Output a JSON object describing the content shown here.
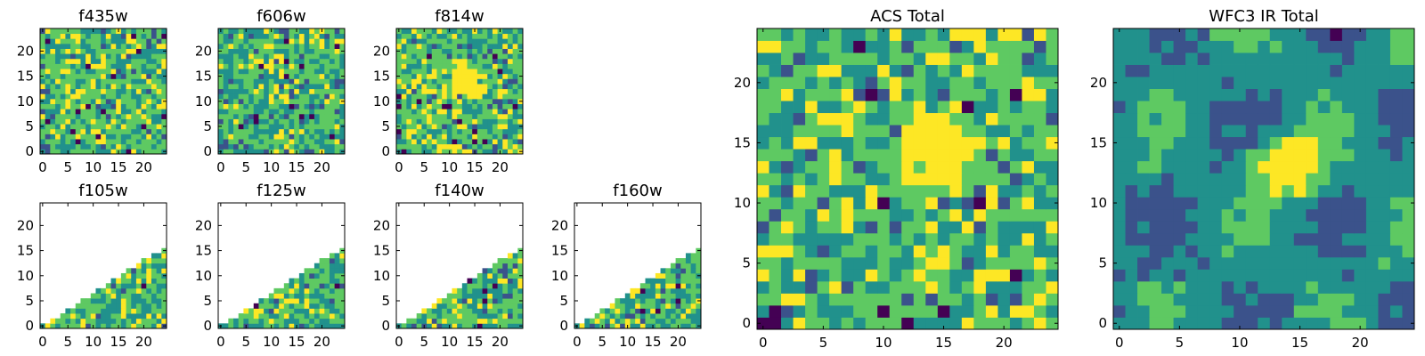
{
  "colormap": [
    "#440154",
    "#3b528b",
    "#21918c",
    "#5ec962",
    "#fde725"
  ],
  "chart_data": [
    {
      "type": "heatmap",
      "title": "f435w",
      "grid_size": 25,
      "x_ticks": [
        0,
        5,
        10,
        15,
        20
      ],
      "y_ticks": [
        0,
        5,
        10,
        15,
        20
      ],
      "valid_region": "full",
      "hotspot": null,
      "texture": "noise",
      "seed": 11
    },
    {
      "type": "heatmap",
      "title": "f606w",
      "grid_size": 25,
      "x_ticks": [
        0,
        5,
        10,
        15,
        20
      ],
      "y_ticks": [
        0,
        5,
        10,
        15,
        20
      ],
      "valid_region": "full",
      "hotspot": null,
      "texture": "noise",
      "seed": 23
    },
    {
      "type": "heatmap",
      "title": "f814w",
      "grid_size": 25,
      "x_ticks": [
        0,
        5,
        10,
        15,
        20
      ],
      "y_ticks": [
        0,
        5,
        10,
        15,
        20
      ],
      "valid_region": "full",
      "hotspot": {
        "x": 14,
        "y": 14
      },
      "texture": "noise",
      "seed": 37
    },
    {
      "type": "heatmap",
      "title": "f105w",
      "grid_size": 25,
      "x_ticks": [
        0,
        5,
        10,
        15,
        20
      ],
      "y_ticks": [
        0,
        5,
        10,
        15,
        20
      ],
      "valid_region": "lower-right-triangle",
      "hotspot": null,
      "texture": "noise",
      "seed": 41
    },
    {
      "type": "heatmap",
      "title": "f125w",
      "grid_size": 25,
      "x_ticks": [
        0,
        5,
        10,
        15,
        20
      ],
      "y_ticks": [
        0,
        5,
        10,
        15,
        20
      ],
      "valid_region": "lower-right-triangle",
      "hotspot": null,
      "texture": "noise",
      "seed": 53
    },
    {
      "type": "heatmap",
      "title": "f140w",
      "grid_size": 25,
      "x_ticks": [
        0,
        5,
        10,
        15,
        20
      ],
      "y_ticks": [
        0,
        5,
        10,
        15,
        20
      ],
      "valid_region": "lower-right-triangle",
      "hotspot": null,
      "texture": "noise",
      "seed": 67
    },
    {
      "type": "heatmap",
      "title": "f160w",
      "grid_size": 25,
      "x_ticks": [
        0,
        5,
        10,
        15,
        20
      ],
      "y_ticks": [
        0,
        5,
        10,
        15,
        20
      ],
      "valid_region": "lower-right-triangle",
      "hotspot": null,
      "texture": "noise",
      "seed": 79
    },
    {
      "type": "heatmap",
      "title": "ACS Total",
      "grid_size": 25,
      "x_ticks": [
        0,
        5,
        10,
        15,
        20
      ],
      "y_ticks": [
        0,
        5,
        10,
        15,
        20
      ],
      "valid_region": "full",
      "hotspot": {
        "x": 14,
        "y": 14
      },
      "texture": "noise",
      "seed": 97
    },
    {
      "type": "heatmap",
      "title": "WFC3 IR Total",
      "grid_size": 25,
      "x_ticks": [
        0,
        5,
        10,
        15,
        20
      ],
      "y_ticks": [
        0,
        5,
        10,
        15,
        20
      ],
      "valid_region": "full",
      "hotspot": {
        "x": 14,
        "y": 13
      },
      "texture": "smooth",
      "seed": 113
    }
  ]
}
